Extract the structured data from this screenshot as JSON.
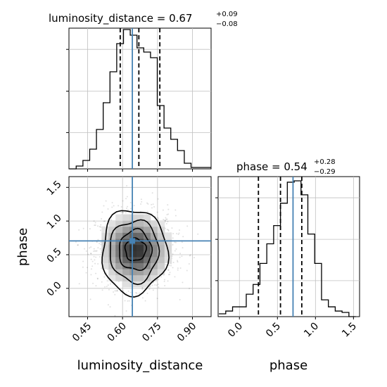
{
  "chart_data": {
    "type": "corner",
    "parameters": [
      "luminosity_distance",
      "phase"
    ],
    "truths": {
      "luminosity_distance": 0.642,
      "phase": 0.705
    },
    "titles": [
      {
        "param": "luminosity_distance",
        "label": "luminosity_distance",
        "median": "0.67",
        "plus": "+0.09",
        "minus": "−0.08"
      },
      {
        "param": "phase",
        "label": "phase",
        "median": "0.54",
        "plus": "+0.28",
        "minus": "−0.29"
      }
    ],
    "marginals": [
      {
        "param": "luminosity_distance",
        "xlim": [
          0.37,
          0.98
        ],
        "ylim": [
          0,
          1.0
        ],
        "bins": [
          0.372,
          0.401,
          0.43,
          0.459,
          0.488,
          0.517,
          0.546,
          0.575,
          0.604,
          0.633,
          0.662,
          0.691,
          0.72,
          0.749,
          0.778,
          0.807,
          0.836,
          0.865,
          0.894,
          0.923,
          0.952,
          0.981
        ],
        "counts": [
          0.0,
          0.02,
          0.06,
          0.14,
          0.28,
          0.47,
          0.69,
          0.89,
          0.99,
          0.95,
          0.86,
          0.83,
          0.79,
          0.45,
          0.29,
          0.21,
          0.13,
          0.04,
          0.01,
          0.01,
          0.01
        ],
        "quantiles": [
          0.59,
          0.67,
          0.76
        ],
        "yticks": [
          0.258,
          0.552,
          0.849
        ],
        "xticks": [
          0.45,
          0.6,
          0.75,
          0.9
        ],
        "xtick_labels": [
          "0.45",
          "0.60",
          "0.75",
          "0.90"
        ]
      },
      {
        "param": "phase",
        "xlim": [
          -0.28,
          1.58
        ],
        "ylim": [
          0,
          1.0
        ],
        "bins": [
          -0.27,
          -0.18,
          -0.09,
          0.0,
          0.09,
          0.18,
          0.27,
          0.36,
          0.45,
          0.54,
          0.63,
          0.72,
          0.81,
          0.9,
          0.99,
          1.08,
          1.17,
          1.26,
          1.35,
          1.44,
          1.53
        ],
        "counts": [
          0.02,
          0.04,
          0.07,
          0.07,
          0.16,
          0.23,
          0.38,
          0.52,
          0.65,
          0.81,
          0.96,
          0.97,
          0.87,
          0.59,
          0.38,
          0.12,
          0.07,
          0.04,
          0.03,
          0.0
        ],
        "quantiles": [
          0.25,
          0.54,
          0.82
        ],
        "yticks": [
          0.257,
          0.552,
          0.849
        ],
        "xticks": [
          0.0,
          0.5,
          1.0,
          1.5
        ],
        "xtick_labels": [
          "0.0",
          "0.5",
          "1.0",
          "1.5"
        ]
      }
    ],
    "joint": {
      "xparam": "luminosity_distance",
      "yparam": "phase",
      "xlim": [
        0.37,
        0.98
      ],
      "ylim": [
        -0.42,
        1.66
      ],
      "xticks": [
        0.45,
        0.6,
        0.75,
        0.9
      ],
      "xtick_labels": [
        "0.45",
        "0.60",
        "0.75",
        "0.90"
      ],
      "yticks": [
        0.0,
        0.5,
        1.0,
        1.5
      ],
      "ytick_labels": [
        "0.0",
        "0.5",
        "1.0",
        "1.5"
      ],
      "center": [
        0.655,
        0.575
      ],
      "contour_levels": [
        {
          "rx": 0.045,
          "ry": 0.165,
          "dx": 0.0,
          "dy": 0.0
        },
        {
          "rx": 0.07,
          "ry": 0.3,
          "dx": 0.0,
          "dy": -0.01
        },
        {
          "rx": 0.105,
          "ry": 0.46,
          "dx": -0.005,
          "dy": -0.02
        },
        {
          "rx": 0.14,
          "ry": 0.63,
          "dx": -0.005,
          "dy": -0.03
        }
      ]
    },
    "xlabels": [
      "luminosity_distance",
      "phase"
    ],
    "ylabel": "phase",
    "grid": true,
    "truth_color": "#4682b4",
    "hist_color": "#000000",
    "grid_color": "#c0c0c0"
  }
}
